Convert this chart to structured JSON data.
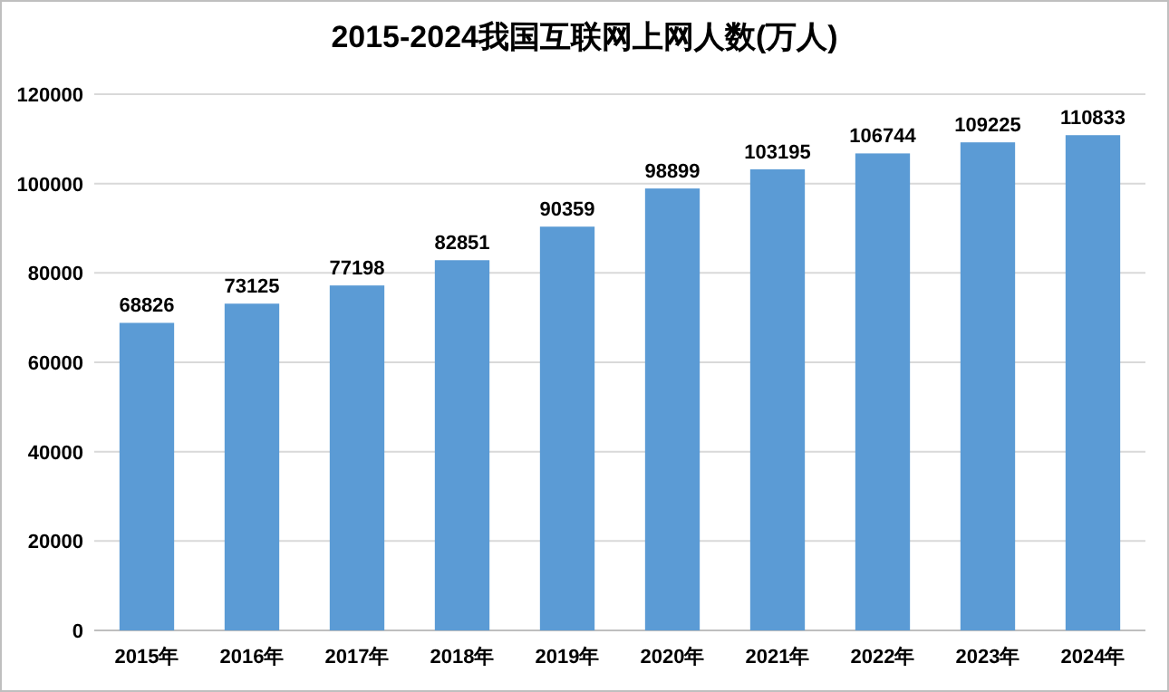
{
  "chart_data": {
    "type": "bar",
    "title": "2015-2024我国互联网上网人数(万人)",
    "categories": [
      "2015年",
      "2016年",
      "2017年",
      "2018年",
      "2019年",
      "2020年",
      "2021年",
      "2022年",
      "2023年",
      "2024年"
    ],
    "values": [
      68826,
      73125,
      77198,
      82851,
      90359,
      98899,
      103195,
      106744,
      109225,
      110833
    ],
    "color": "#5b9bd5",
    "ylim": [
      0,
      120000
    ],
    "yticks": [
      0,
      20000,
      40000,
      60000,
      80000,
      100000,
      120000
    ],
    "grid": "y",
    "data_labels": true
  }
}
